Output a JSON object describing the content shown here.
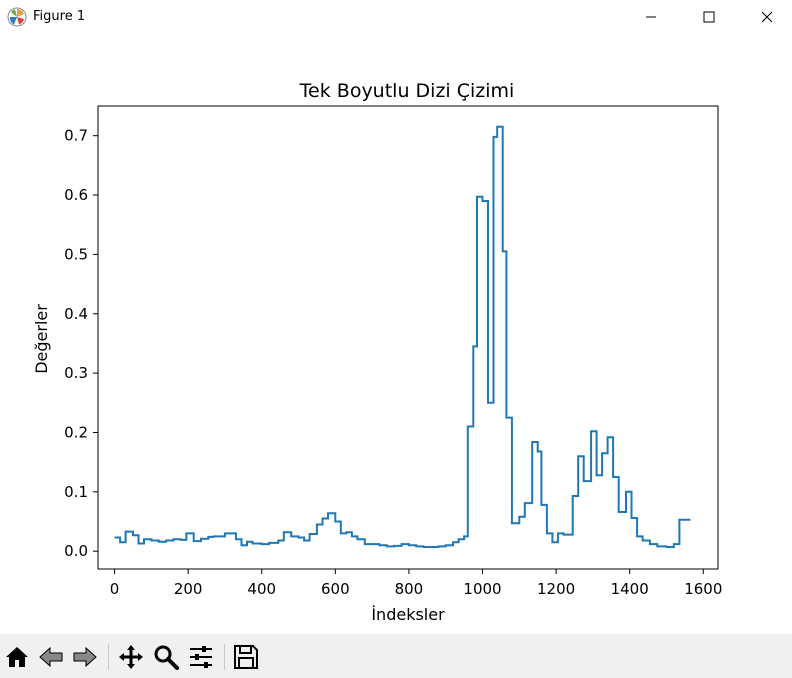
{
  "window": {
    "title": "Figure 1",
    "controls": [
      "minimize",
      "maximize",
      "close"
    ]
  },
  "toolbar": {
    "buttons": [
      "home-icon",
      "back-icon",
      "forward-icon",
      "pan-icon",
      "zoom-icon",
      "configure-subplots-icon",
      "save-icon"
    ]
  },
  "colors": {
    "line": "#1f77b4",
    "toolbar_bg": "#f0f0f0"
  },
  "chart_data": {
    "type": "line",
    "drawstyle": "steps",
    "title": "Tek Boyutlu Dizi Çizimi",
    "xlabel": "İndeksler",
    "ylabel": "Değerler",
    "xlim": [
      -45,
      1640
    ],
    "ylim": [
      -0.03,
      0.75
    ],
    "xticks": [
      0,
      200,
      400,
      600,
      800,
      1000,
      1200,
      1400,
      1600
    ],
    "yticks": [
      0.0,
      0.1,
      0.2,
      0.3,
      0.4,
      0.5,
      0.6,
      0.7
    ],
    "ytick_labels": [
      "0.0",
      "0.1",
      "0.2",
      "0.3",
      "0.4",
      "0.5",
      "0.6",
      "0.7"
    ],
    "grid": false,
    "legend": false,
    "series": [
      {
        "x": [
          0,
          15,
          30,
          50,
          65,
          80,
          100,
          120,
          140,
          160,
          180,
          195,
          215,
          235,
          255,
          270,
          300,
          330,
          345,
          360,
          375,
          400,
          420,
          445,
          460,
          480,
          500,
          515,
          530,
          550,
          565,
          580,
          600,
          615,
          630,
          645,
          660,
          680,
          700,
          720,
          740,
          760,
          780,
          800,
          820,
          840,
          860,
          880,
          900,
          920,
          935,
          950,
          960,
          975,
          985,
          1000,
          1015,
          1030,
          1040,
          1055,
          1065,
          1080,
          1100,
          1115,
          1135,
          1150,
          1160,
          1175,
          1190,
          1205,
          1220,
          1245,
          1260,
          1275,
          1295,
          1310,
          1325,
          1340,
          1355,
          1370,
          1390,
          1405,
          1420,
          1435,
          1455,
          1475,
          1500,
          1520,
          1535,
          1550
        ],
        "values": [
          0.023,
          0.015,
          0.033,
          0.027,
          0.013,
          0.02,
          0.018,
          0.016,
          0.018,
          0.02,
          0.019,
          0.03,
          0.017,
          0.021,
          0.024,
          0.025,
          0.03,
          0.02,
          0.01,
          0.016,
          0.013,
          0.012,
          0.014,
          0.018,
          0.032,
          0.025,
          0.023,
          0.018,
          0.029,
          0.045,
          0.055,
          0.064,
          0.05,
          0.03,
          0.032,
          0.025,
          0.02,
          0.012,
          0.012,
          0.01,
          0.008,
          0.009,
          0.012,
          0.01,
          0.008,
          0.007,
          0.007,
          0.008,
          0.01,
          0.015,
          0.02,
          0.025,
          0.21,
          0.345,
          0.597,
          0.59,
          0.25,
          0.698,
          0.715,
          0.505,
          0.225,
          0.047,
          0.058,
          0.081,
          0.184,
          0.168,
          0.078,
          0.03,
          0.015,
          0.03,
          0.028,
          0.093,
          0.16,
          0.118,
          0.202,
          0.128,
          0.165,
          0.192,
          0.125,
          0.066,
          0.1,
          0.056,
          0.025,
          0.018,
          0.012,
          0.008,
          0.007,
          0.012,
          0.053,
          0.053
        ]
      }
    ]
  }
}
